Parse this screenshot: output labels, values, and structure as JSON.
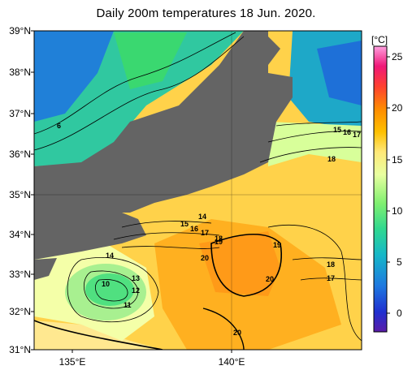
{
  "title": "Daily 200m temperatures 18 Jun. 2020.",
  "unit": "[°C]",
  "lat_labels": [
    "39°N",
    "38°N",
    "37°N",
    "36°N",
    "35°N",
    "34°N",
    "33°N",
    "32°N",
    "31°N"
  ],
  "lon_labels": [
    "135°E",
    "140°E"
  ],
  "colorbar": {
    "min": -2,
    "max": 26,
    "ticks": [
      "25",
      "20",
      "15",
      "10",
      "5",
      "0"
    ],
    "colors": [
      "#5a1ca8",
      "#2030d0",
      "#1e78e0",
      "#16b8c8",
      "#30d890",
      "#80f070",
      "#e8ffa0",
      "#ffe878",
      "#ffc000",
      "#ff8c00",
      "#ff4030",
      "#f01878",
      "#ffa0e0"
    ]
  },
  "contour_labels": [
    "6",
    "15",
    "16",
    "17",
    "18",
    "14",
    "15",
    "16",
    "17",
    "18",
    "19",
    "20",
    "19",
    "18",
    "17",
    "20",
    "14",
    "13",
    "10",
    "12",
    "11",
    "20"
  ]
}
